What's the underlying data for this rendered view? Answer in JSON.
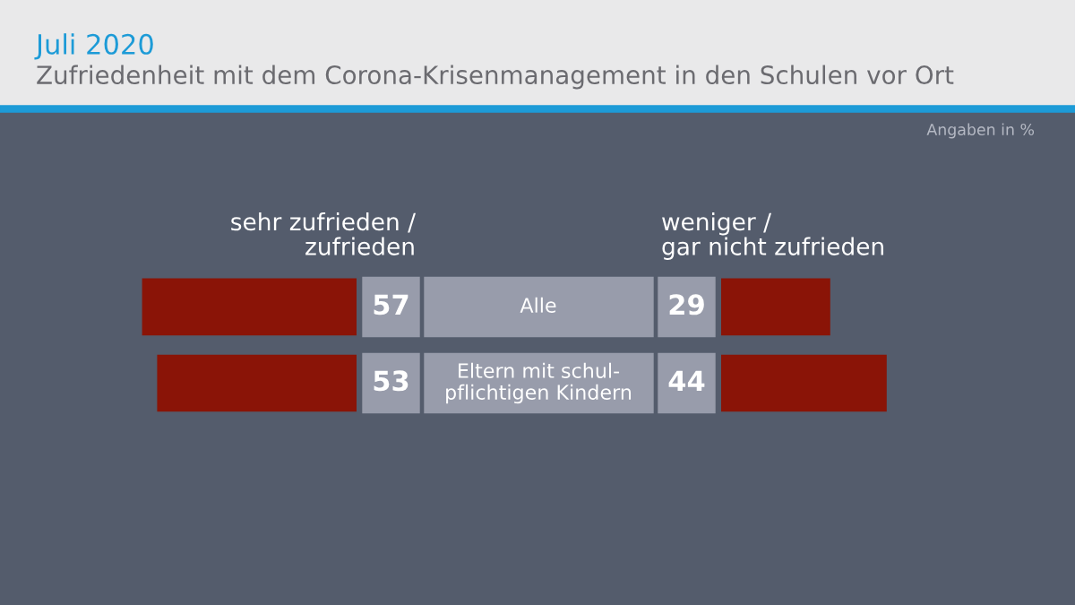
{
  "chart_data": [
    {
      "type": "bar",
      "orientation": "horizontal",
      "title": "Juli 2020",
      "subtitle": "Zufriedenheit mit dem Corona-Krisenmanagement in den Schulen vor Ort",
      "annotations": [
        "Angaben in %"
      ],
      "categories": [
        "Alle",
        "Eltern mit schul-\npflichtigen Kindern"
      ],
      "tick_labels": false,
      "data_labels": true,
      "series": [
        {
          "name": "sehr zufrieden /\nzufrieden",
          "color": "#8a1407",
          "values": [
            57,
            53
          ]
        }
      ]
    },
    {
      "type": "bar",
      "orientation": "horizontal",
      "categories": [
        null,
        null
      ],
      "tick_labels": false,
      "data_labels": true,
      "series": [
        {
          "name": "weniger /\ngar nicht zufrieden",
          "color": "#8a1407",
          "values": [
            29,
            44
          ]
        }
      ]
    }
  ]
}
